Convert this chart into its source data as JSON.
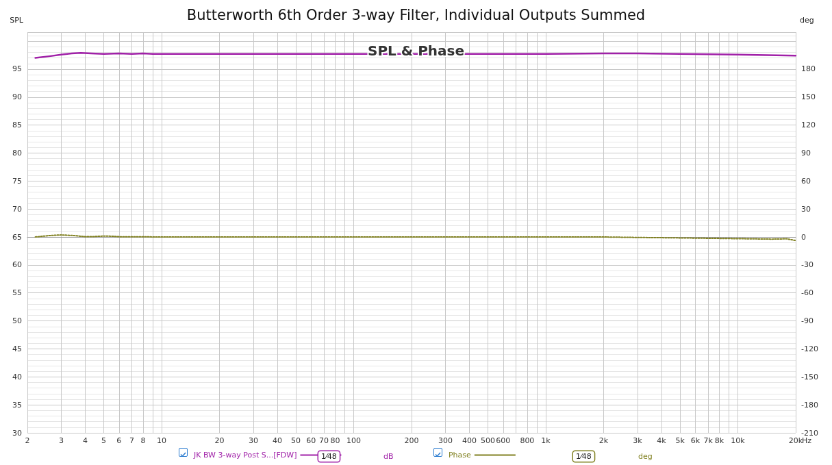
{
  "chart_data": {
    "type": "line",
    "title": "Butterworth 6th Order 3-way Filter, Individual Outputs Summed",
    "ylabel": "SPL",
    "y2label": "deg",
    "annotations": [
      "SPL & Phase",
      "1⁄48",
      "dB",
      "1⁄48",
      "deg"
    ],
    "log": "x",
    "grid": true,
    "legend": "bottom",
    "marker": "none",
    "xlim": [
      2,
      20000
    ],
    "xticks": [
      2,
      3,
      4,
      5,
      6,
      7,
      8,
      {
        "value": 9,
        "label": null
      },
      10,
      20,
      30,
      40,
      50,
      60,
      70,
      80,
      {
        "value": 90,
        "label": null
      },
      100,
      200,
      300,
      400,
      500,
      600,
      {
        "value": 700,
        "label": null
      },
      800,
      {
        "value": 900,
        "label": null
      },
      {
        "value": 1000,
        "label": "1k"
      },
      {
        "value": 2000,
        "label": "2k"
      },
      {
        "value": 3000,
        "label": "3k"
      },
      {
        "value": 4000,
        "label": "4k"
      },
      {
        "value": 5000,
        "label": "5k"
      },
      {
        "value": 6000,
        "label": "6k"
      },
      {
        "value": 7000,
        "label": "7k"
      },
      {
        "value": 8000,
        "label": "8k"
      },
      {
        "value": 9000,
        "label": null
      },
      {
        "value": 10000,
        "label": "10k"
      },
      {
        "value": 20000,
        "label": "20k"
      }
    ],
    "xlabel": "Hz",
    "ylim": [
      30,
      101.6
    ],
    "yticks": [
      30,
      35,
      40,
      45,
      50,
      55,
      60,
      65,
      70,
      75,
      80,
      85,
      90,
      95
    ],
    "y2lim": [
      -210,
      219.6
    ],
    "y2ticks": [
      -210,
      -180,
      -150,
      -120,
      -90,
      -60,
      -30,
      0,
      30,
      60,
      90,
      120,
      150,
      180
    ],
    "series": [
      {
        "name": "JK BW 3-way Post S...[FDW]",
        "color": "#a020a8",
        "line_style": "solid",
        "x": [
          2.2,
          2.6,
          3,
          3.4,
          3.8,
          4.3,
          5,
          6,
          7,
          8,
          9,
          10,
          20,
          50,
          100,
          300,
          1000,
          2000,
          2500,
          3000,
          5000,
          10000,
          20000
        ],
        "values": [
          97.0,
          97.3,
          97.6,
          97.8,
          97.9,
          97.8,
          97.7,
          97.8,
          97.7,
          97.8,
          97.7,
          97.7,
          97.7,
          97.7,
          97.7,
          97.7,
          97.7,
          97.8,
          97.8,
          97.8,
          97.7,
          97.6,
          97.4
        ]
      },
      {
        "name": "Phase",
        "color": "#808020",
        "line_style": "dotted",
        "axis": "y2",
        "x": [
          2.2,
          2.6,
          3,
          3.5,
          4,
          4.5,
          5,
          5.5,
          6,
          7,
          8,
          10,
          100,
          1000,
          2000,
          3000,
          5000,
          10000,
          15000,
          18000,
          20000
        ],
        "values": [
          0,
          1.5,
          2.2,
          1.5,
          0.3,
          0.5,
          1,
          0.8,
          0.3,
          0.3,
          0.2,
          0,
          0,
          0,
          0,
          -0.5,
          -1,
          -1.8,
          -2.3,
          -2,
          -3.8
        ]
      }
    ]
  }
}
